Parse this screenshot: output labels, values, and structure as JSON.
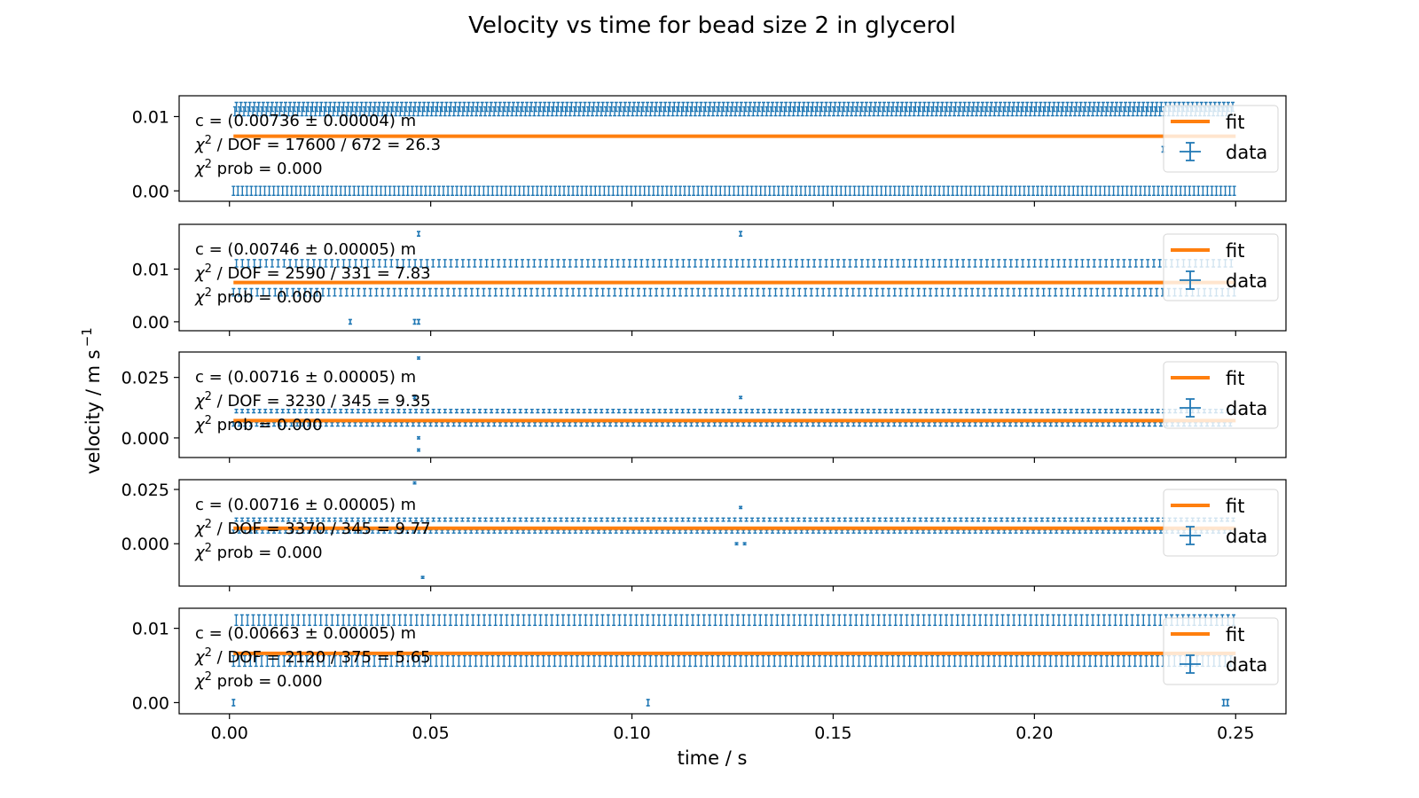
{
  "figure": {
    "title": "Velocity vs time for bead size 2 in glycerol",
    "xlabel": "time / s",
    "ylabel": "velocity / m s",
    "ylabel_exponent": "−1",
    "colors": {
      "data": "#1f77b4",
      "fit": "#ff7f0e",
      "frame": "#000000"
    }
  },
  "legend": {
    "fit_label": "fit",
    "data_label": "data",
    "placement": "right"
  },
  "chart_data": [
    {
      "type": "scatter",
      "panel": 1,
      "xlim": [
        -0.0125,
        0.2625
      ],
      "ylim": [
        -0.0014,
        0.0128
      ],
      "xticks": [
        0.0,
        0.05,
        0.1,
        0.15,
        0.2,
        0.25
      ],
      "yticks": [
        0.0,
        0.01
      ],
      "ytick_labels": [
        "0.00",
        "0.01"
      ],
      "fit": {
        "c": 0.00736,
        "x_range": [
          0.001,
          0.25
        ]
      },
      "annotation": {
        "c_line": "c = (0.00736 ± 0.00004) m",
        "dof_line": "/ DOF = 17600 / 672 = 26.3",
        "prob_line": "prob = 0.000"
      },
      "series": [
        {
          "name": "data",
          "levels": [
            0.0,
            0.0107,
            0.0113
          ],
          "yerr": 0.0006,
          "x_start": 0.001,
          "x_end": 0.25,
          "x_step": 0.00037
        }
      ],
      "outliers": [
        {
          "x": 0.232,
          "y": 0.0056
        }
      ]
    },
    {
      "type": "scatter",
      "panel": 2,
      "xlim": [
        -0.0125,
        0.2625
      ],
      "ylim": [
        -0.0017,
        0.0185
      ],
      "xticks": [
        0.0,
        0.05,
        0.1,
        0.15,
        0.2,
        0.25
      ],
      "yticks": [
        0.0,
        0.01
      ],
      "ytick_labels": [
        "0.00",
        "0.01"
      ],
      "fit": {
        "c": 0.00746,
        "x_range": [
          0.001,
          0.25
        ]
      },
      "annotation": {
        "c_line": "c = (0.00746 ± 0.00005) m",
        "dof_line": "/ DOF = 2590 / 331 = 7.83",
        "prob_line": "prob = 0.000"
      },
      "series": [
        {
          "name": "data",
          "levels": [
            0.0056,
            0.0111
          ],
          "yerr": 0.0007,
          "x_start": 0.001,
          "x_end": 0.25,
          "x_step": 0.00074
        }
      ],
      "outliers": [
        {
          "x": 0.047,
          "y": 0.0167
        },
        {
          "x": 0.127,
          "y": 0.0167
        },
        {
          "x": 0.03,
          "y": 0.0
        },
        {
          "x": 0.046,
          "y": 0.0
        },
        {
          "x": 0.047,
          "y": 0.0
        }
      ]
    },
    {
      "type": "scatter",
      "panel": 3,
      "xlim": [
        -0.0125,
        0.2625
      ],
      "ylim": [
        -0.0081,
        0.0355
      ],
      "xticks": [
        0.0,
        0.05,
        0.1,
        0.15,
        0.2,
        0.25
      ],
      "yticks": [
        0.0,
        0.025
      ],
      "ytick_labels": [
        "0.000",
        "0.025"
      ],
      "fit": {
        "c": 0.00716,
        "x_range": [
          0.001,
          0.25
        ]
      },
      "annotation": {
        "c_line": "c = (0.00716 ± 0.00005) m",
        "dof_line": "/ DOF = 3230 / 345 = 9.35",
        "prob_line": "prob = 0.000"
      },
      "series": [
        {
          "name": "data",
          "levels": [
            0.0056,
            0.0111
          ],
          "yerr": 0.0007,
          "x_start": 0.001,
          "x_end": 0.25,
          "x_step": 0.00072
        }
      ],
      "outliers": [
        {
          "x": 0.047,
          "y": 0.033
        },
        {
          "x": 0.046,
          "y": 0.0167
        },
        {
          "x": 0.127,
          "y": 0.0167
        },
        {
          "x": 0.047,
          "y": 0.0
        },
        {
          "x": 0.047,
          "y": -0.005
        }
      ]
    },
    {
      "type": "scatter",
      "panel": 4,
      "xlim": [
        -0.0125,
        0.2625
      ],
      "ylim": [
        -0.0195,
        0.0295
      ],
      "xticks": [
        0.0,
        0.05,
        0.1,
        0.15,
        0.2,
        0.25
      ],
      "yticks": [
        0.0,
        0.025
      ],
      "ytick_labels": [
        "0.000",
        "0.025"
      ],
      "fit": {
        "c": 0.00716,
        "x_range": [
          0.001,
          0.25
        ]
      },
      "annotation": {
        "c_line": "c = (0.00716 ± 0.00005) m",
        "dof_line": "/ DOF = 3370 / 345 = 9.77",
        "prob_line": "prob = 0.000"
      },
      "series": [
        {
          "name": "data",
          "levels": [
            0.0056,
            0.0111
          ],
          "yerr": 0.0007,
          "x_start": 0.001,
          "x_end": 0.25,
          "x_step": 0.00072
        }
      ],
      "outliers": [
        {
          "x": 0.046,
          "y": 0.028
        },
        {
          "x": 0.127,
          "y": 0.0167
        },
        {
          "x": 0.126,
          "y": 0.0
        },
        {
          "x": 0.128,
          "y": 0.0
        },
        {
          "x": 0.048,
          "y": -0.0155
        }
      ]
    },
    {
      "type": "scatter",
      "panel": 5,
      "xlim": [
        -0.0125,
        0.2625
      ],
      "ylim": [
        -0.0015,
        0.0127
      ],
      "xticks": [
        0.0,
        0.05,
        0.1,
        0.15,
        0.2,
        0.25
      ],
      "xtick_labels": [
        "0.00",
        "0.05",
        "0.10",
        "0.15",
        "0.20",
        "0.25"
      ],
      "yticks": [
        0.0,
        0.01
      ],
      "ytick_labels": [
        "0.00",
        "0.01"
      ],
      "fit": {
        "c": 0.00663,
        "x_range": [
          0.001,
          0.25
        ]
      },
      "annotation": {
        "c_line": "c = (0.00663 ± 0.00005) m",
        "dof_line": "/ DOF = 2120 / 375 = 5.65",
        "prob_line": "prob = 0.000"
      },
      "series": [
        {
          "name": "data",
          "levels": [
            0.0056,
            0.0111
          ],
          "yerr": 0.0007,
          "x_start": 0.001,
          "x_end": 0.25,
          "x_step": 0.0007
        }
      ],
      "outliers": [
        {
          "x": 0.001,
          "y": 0.0
        },
        {
          "x": 0.104,
          "y": 0.0
        },
        {
          "x": 0.247,
          "y": 0.0
        },
        {
          "x": 0.248,
          "y": 0.0
        }
      ]
    }
  ]
}
